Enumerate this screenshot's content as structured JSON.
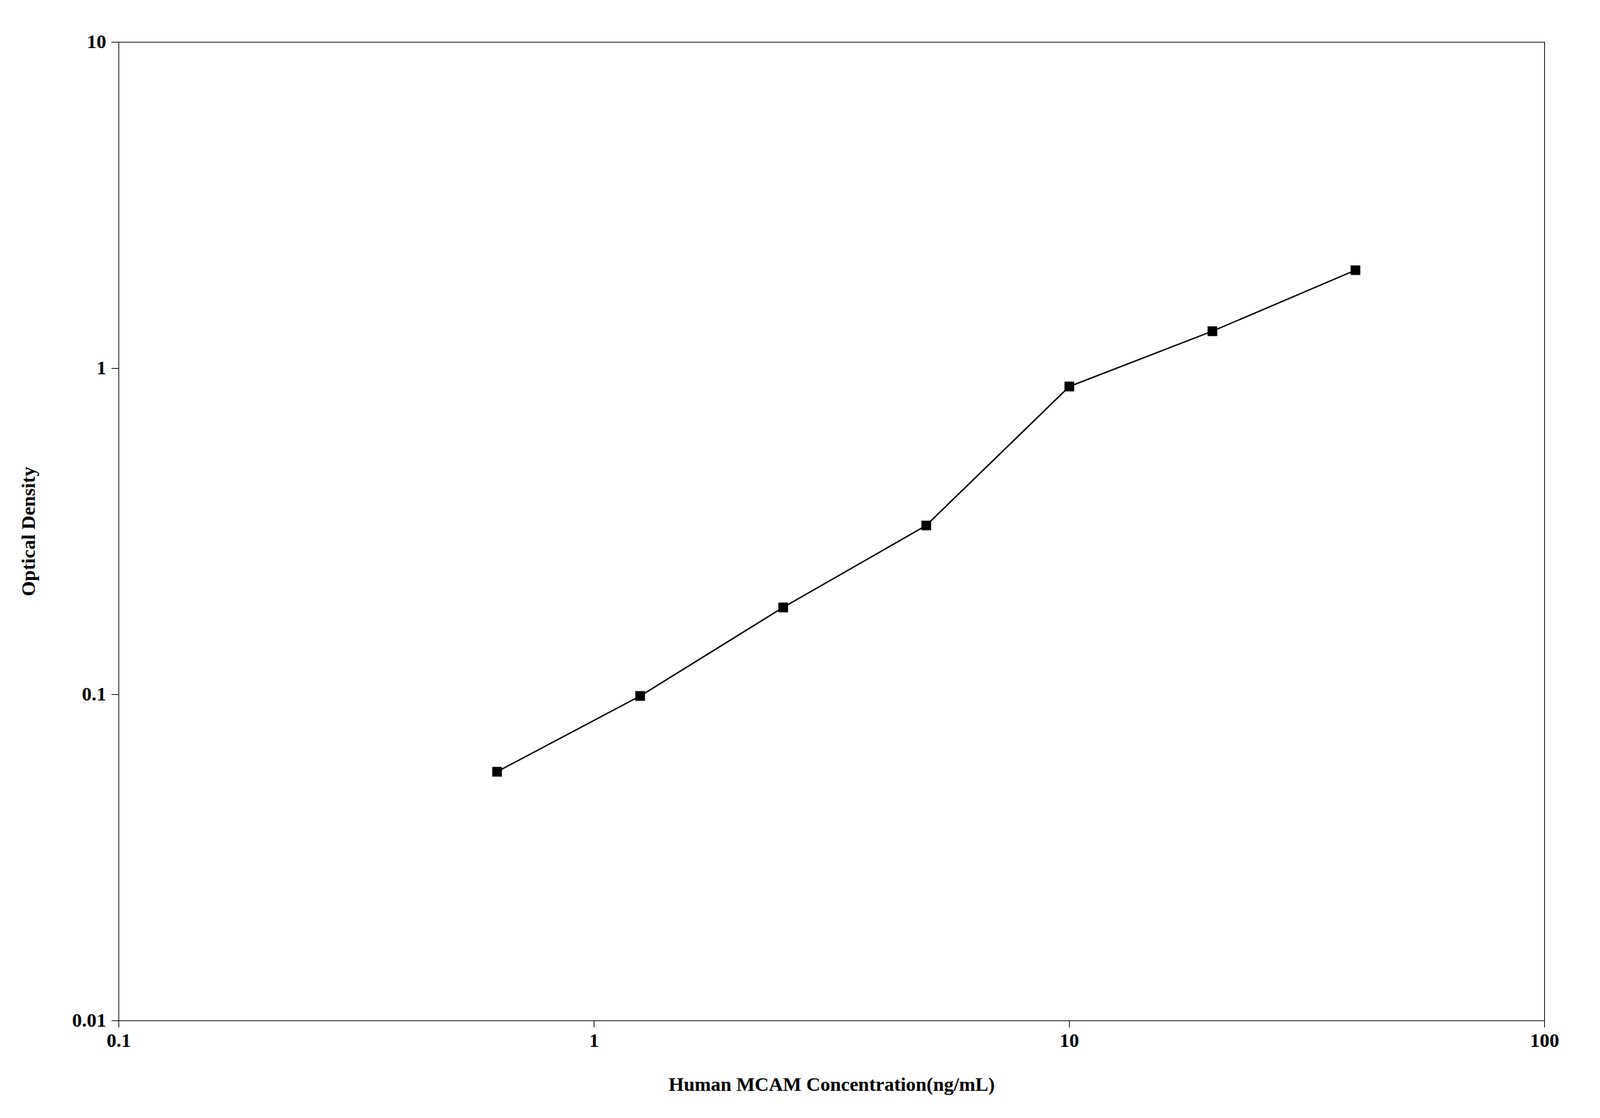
{
  "chart_data": {
    "type": "line",
    "x": [
      0.625,
      1.25,
      2.5,
      5.0,
      10.0,
      20.0,
      40.0
    ],
    "values": [
      0.058,
      0.099,
      0.185,
      0.33,
      0.88,
      1.3,
      2.0
    ],
    "xlabel": "Human MCAM Concentration(ng/mL)",
    "ylabel": "Optical Density",
    "xlim": [
      0.1,
      100
    ],
    "ylim": [
      0.01,
      10
    ],
    "xticks": [
      0.1,
      1,
      10,
      100
    ],
    "yticks": [
      0.01,
      0.1,
      1,
      10
    ],
    "log": true,
    "grid": false,
    "color": "#000000",
    "marker": "square"
  }
}
